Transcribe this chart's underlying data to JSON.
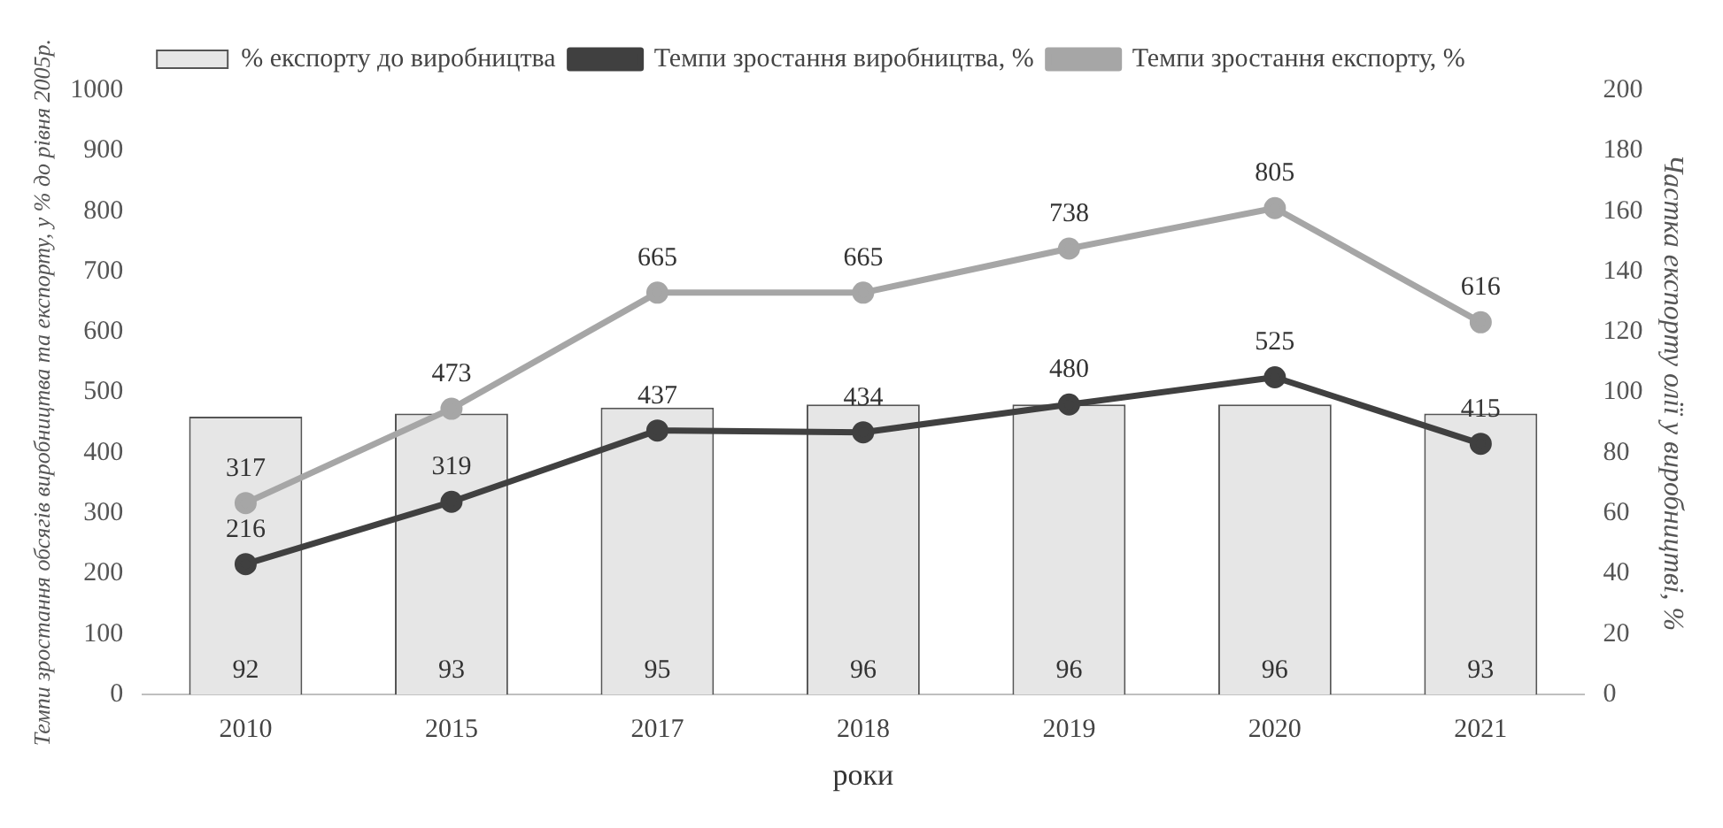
{
  "chart_data": {
    "type": "bar",
    "xlabel": "роки",
    "ylabel": "Темпи зростання обсягів виробництва та експорту, у % до рівня 2005р.",
    "y2label": "Частка експорту олії у виробництві, %",
    "categories": [
      "2010",
      "2015",
      "2017",
      "2018",
      "2019",
      "2020",
      "2021"
    ],
    "series": [
      {
        "name": "% експорту до виробництва",
        "axis": "y2",
        "color": "#e6e6e6",
        "values": [
          92,
          93,
          95,
          96,
          96,
          96,
          93
        ]
      },
      {
        "name": "Темпи зростання виробництва, %",
        "type": "line",
        "color": "#404040",
        "values": [
          216,
          319,
          437,
          434,
          480,
          525,
          415
        ]
      },
      {
        "name": "Темпи зростання експорту, %",
        "type": "line",
        "color": "#a6a6a6",
        "values": [
          317,
          473,
          665,
          665,
          738,
          805,
          616
        ]
      }
    ],
    "ylim": [
      0,
      1000
    ],
    "yticks": [
      0,
      100,
      200,
      300,
      400,
      500,
      600,
      700,
      800,
      900,
      1000
    ],
    "y2lim": [
      0,
      200
    ],
    "y2ticks": [
      0,
      20,
      40,
      60,
      80,
      100,
      120,
      140,
      160,
      180,
      200
    ],
    "data_labels": true,
    "legend": "top left",
    "marker": "circle",
    "grid": false
  }
}
